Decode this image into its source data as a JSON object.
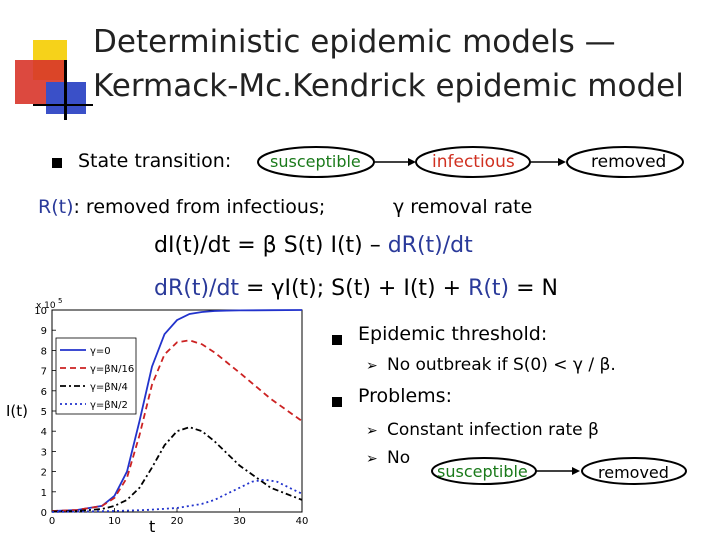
{
  "title": {
    "line1": "Deterministic epidemic models —",
    "line2": "Kermack-Mc.Kendrick epidemic model"
  },
  "state_transition": {
    "label": "State transition:",
    "states": [
      "susceptible",
      "infectious",
      "removed"
    ]
  },
  "removed_line": {
    "rt": "R(t)",
    "text": ": removed from infectious;",
    "gamma_text": "γ removal rate"
  },
  "equations": {
    "eq1_lhs": "dI(t)/dt = β S(t) I(t) – ",
    "eq1_drt": "dR(t)/dt",
    "eq2_lhs": "dR(t)/dt",
    "eq2_mid": " = γI(t);   S(t) + I(t) + ",
    "eq2_rt": "R(t)",
    "eq2_end": " = N"
  },
  "bullets": {
    "threshold": "Epidemic threshold:",
    "no_outbreak": "No outbreak if S(0) <  γ / β.",
    "problems": "Problems:",
    "constant_rate": "Constant infection rate β",
    "no": "No",
    "susceptible2": "susceptible",
    "removed2": "removed"
  },
  "chart_data": {
    "type": "line",
    "ylabel": "I(t)",
    "xlabel": "t",
    "y_exponent": "x 10",
    "y_exponent_power": "5",
    "xlim": [
      0,
      40
    ],
    "ylim": [
      0,
      10
    ],
    "x_ticks": [
      "0",
      "10",
      "20",
      "30",
      "40"
    ],
    "y_ticks": [
      "0",
      "1",
      "2",
      "3",
      "4",
      "5",
      "6",
      "7",
      "8",
      "9",
      "10"
    ],
    "legend": [
      "γ=0",
      "γ=βN/16",
      "γ=βN/4",
      "γ=βN/2"
    ],
    "series": [
      {
        "name": "γ=0",
        "color": "#2233cc",
        "dash": "",
        "x": [
          0,
          4,
          8,
          10,
          12,
          14,
          16,
          18,
          20,
          22,
          24,
          26,
          28,
          30,
          35,
          40
        ],
        "y": [
          0.05,
          0.1,
          0.3,
          0.8,
          2.0,
          4.5,
          7.2,
          8.8,
          9.5,
          9.8,
          9.9,
          9.95,
          9.97,
          9.98,
          9.99,
          10
        ]
      },
      {
        "name": "γ=βN/16",
        "color": "#cc2222",
        "dash": "6,4",
        "x": [
          0,
          4,
          8,
          10,
          12,
          14,
          16,
          18,
          20,
          22,
          24,
          26,
          28,
          30,
          35,
          40
        ],
        "y": [
          0.05,
          0.1,
          0.3,
          0.7,
          1.7,
          3.8,
          6.3,
          7.8,
          8.4,
          8.5,
          8.3,
          7.9,
          7.4,
          6.9,
          5.6,
          4.5
        ]
      },
      {
        "name": "γ=βN/4",
        "color": "#000000",
        "dash": "6,3,2,3",
        "x": [
          0,
          4,
          8,
          10,
          12,
          14,
          16,
          18,
          20,
          22,
          24,
          26,
          28,
          30,
          35,
          40
        ],
        "y": [
          0.02,
          0.05,
          0.15,
          0.3,
          0.6,
          1.2,
          2.2,
          3.3,
          4.0,
          4.2,
          4.0,
          3.5,
          2.9,
          2.3,
          1.2,
          0.6
        ]
      },
      {
        "name": "γ=βN/2",
        "color": "#2233cc",
        "dash": "2,3",
        "x": [
          0,
          10,
          15,
          20,
          24,
          26,
          28,
          30,
          32,
          34,
          36,
          38,
          40
        ],
        "y": [
          0,
          0.05,
          0.1,
          0.2,
          0.4,
          0.6,
          0.9,
          1.2,
          1.5,
          1.6,
          1.5,
          1.2,
          0.9
        ]
      }
    ]
  }
}
